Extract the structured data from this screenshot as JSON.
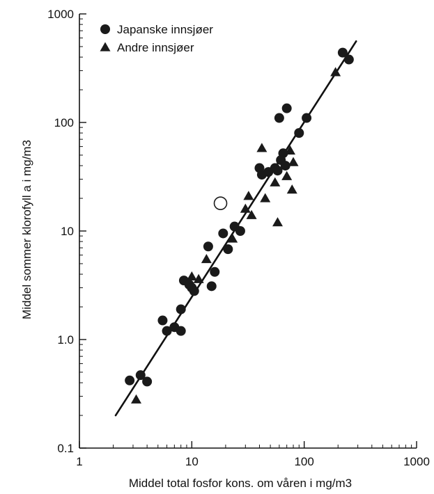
{
  "chart_data": {
    "type": "scatter",
    "xlabel": "Middel total fosfor kons. om våren i mg/m3",
    "ylabel": "Middel sommer klorofyll a i mg/m3",
    "xscale": "log",
    "yscale": "log",
    "xlim": [
      1,
      1000
    ],
    "ylim": [
      0.1,
      1000
    ],
    "x_ticks": [
      "1",
      "10",
      "100",
      "1000"
    ],
    "y_ticks": [
      "0.1",
      "1.0",
      "10",
      "100",
      "1000"
    ],
    "legend_position": "top-left",
    "grid": false,
    "series": [
      {
        "name": "Japanske innsjøer",
        "marker": "circle",
        "color": "#1a1a1a",
        "points": [
          [
            2.8,
            0.42
          ],
          [
            3.5,
            0.47
          ],
          [
            4.0,
            0.41
          ],
          [
            5.5,
            1.5
          ],
          [
            6.0,
            1.2
          ],
          [
            7.0,
            1.3
          ],
          [
            8.0,
            1.9
          ],
          [
            8.0,
            1.2
          ],
          [
            8.5,
            3.5
          ],
          [
            9.5,
            3.2
          ],
          [
            10.0,
            3.0
          ],
          [
            10.5,
            2.8
          ],
          [
            14.0,
            7.2
          ],
          [
            15.0,
            3.1
          ],
          [
            16.0,
            4.2
          ],
          [
            19.0,
            9.5
          ],
          [
            21.0,
            6.8
          ],
          [
            24.0,
            11.0
          ],
          [
            27.0,
            10.0
          ],
          [
            40.0,
            38.0
          ],
          [
            42.0,
            33.0
          ],
          [
            48.0,
            35.0
          ],
          [
            55.0,
            38.0
          ],
          [
            58.0,
            36.0
          ],
          [
            60.0,
            110.0
          ],
          [
            62.0,
            45.0
          ],
          [
            65.0,
            52.0
          ],
          [
            68.0,
            40.0
          ],
          [
            70.0,
            135.0
          ],
          [
            90.0,
            80.0
          ],
          [
            105.0,
            110.0
          ],
          [
            220.0,
            440.0
          ],
          [
            250.0,
            380.0
          ]
        ]
      },
      {
        "name": "Andre innsjøer",
        "marker": "triangle",
        "color": "#1a1a1a",
        "points": [
          [
            3.2,
            0.28
          ],
          [
            10.0,
            3.8
          ],
          [
            11.5,
            3.6
          ],
          [
            13.5,
            5.5
          ],
          [
            23.0,
            8.5
          ],
          [
            30.0,
            16.0
          ],
          [
            32.0,
            21.0
          ],
          [
            34.0,
            14.0
          ],
          [
            42.0,
            58.0
          ],
          [
            45.0,
            20.0
          ],
          [
            55.0,
            28.0
          ],
          [
            58.0,
            12.0
          ],
          [
            70.0,
            32.0
          ],
          [
            75.0,
            55.0
          ],
          [
            78.0,
            24.0
          ],
          [
            80.0,
            43.0
          ],
          [
            190.0,
            290.0
          ]
        ]
      },
      {
        "name": "",
        "marker": "open-circle",
        "color": "#1a1a1a",
        "points": [
          [
            18.0,
            18.0
          ]
        ]
      }
    ],
    "fit_line": {
      "from": [
        2.1,
        0.2
      ],
      "to": [
        290.0,
        560.0
      ]
    },
    "legend": [
      {
        "label": "Japanske innsjøer",
        "marker": "circle"
      },
      {
        "label": "Andre innsjøer",
        "marker": "triangle"
      }
    ]
  }
}
